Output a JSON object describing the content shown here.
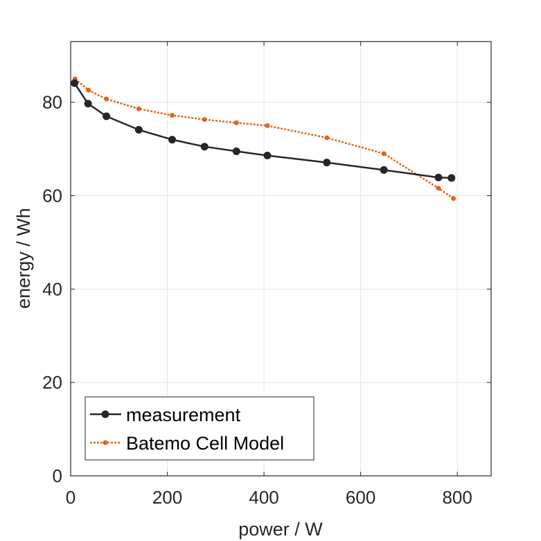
{
  "chart_data": {
    "type": "line",
    "xlabel": "power / W",
    "ylabel": "energy / Wh",
    "xlim": [
      0,
      870
    ],
    "ylim": [
      0,
      93
    ],
    "xticks": [
      0,
      200,
      400,
      600,
      800
    ],
    "yticks": [
      0,
      20,
      40,
      60,
      80
    ],
    "grid": true,
    "legend_position": "bottom-left",
    "series": [
      {
        "name": "measurement",
        "color": "#262626",
        "line_style": "solid",
        "marker": "circle",
        "x": [
          8,
          36,
          74,
          141,
          210,
          277,
          343,
          407,
          530,
          648,
          761,
          788
        ],
        "y": [
          84.1,
          79.7,
          77.0,
          74.1,
          72.0,
          70.5,
          69.5,
          68.6,
          67.1,
          65.5,
          63.9,
          63.8
        ]
      },
      {
        "name": "Batemo Cell Model",
        "color": "#e0661a",
        "line_style": "dotted",
        "marker": "dot",
        "x": [
          9,
          37,
          74,
          141,
          210,
          277,
          343,
          407,
          530,
          648,
          761,
          792
        ],
        "y": [
          85.0,
          82.6,
          80.7,
          78.6,
          77.2,
          76.3,
          75.6,
          75.0,
          72.4,
          69.0,
          61.6,
          59.4
        ]
      }
    ]
  }
}
